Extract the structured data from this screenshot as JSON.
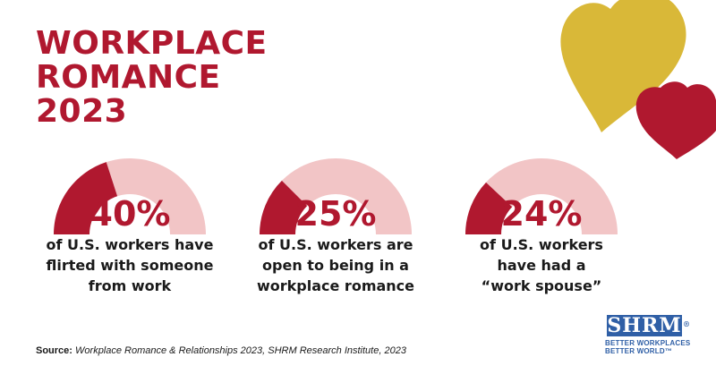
{
  "title": {
    "line1": "WORKPLACE",
    "line2": "ROMANCE",
    "line3": "2023"
  },
  "colors": {
    "accent": "#b0182f",
    "track": "#f2c5c6",
    "gold": "#d9b838",
    "heart_red": "#b0182f"
  },
  "chart_data": {
    "type": "gauge",
    "title": "WORKPLACE ROMANCE 2023",
    "max": 100,
    "items": [
      {
        "value": 40,
        "label": "40%",
        "desc": [
          "of U.S. workers have",
          "flirted with someone",
          "from work"
        ]
      },
      {
        "value": 25,
        "label": "25%",
        "desc": [
          "of U.S. workers are",
          "open to being in a",
          "workplace romance"
        ]
      },
      {
        "value": 24,
        "label": "24%",
        "desc": [
          "of U.S. workers",
          "have had a",
          "“work spouse”"
        ]
      }
    ]
  },
  "source": {
    "label": "Source:",
    "text": "Workplace Romance & Relationships 2023, SHRM Research Institute, 2023"
  },
  "logo": {
    "name": "SHRM",
    "reg": "®",
    "tagline1": "BETTER WORKPLACES",
    "tagline2": "BETTER WORLD™"
  },
  "icons": [
    "gold-heart-icon",
    "red-heart-icon"
  ]
}
